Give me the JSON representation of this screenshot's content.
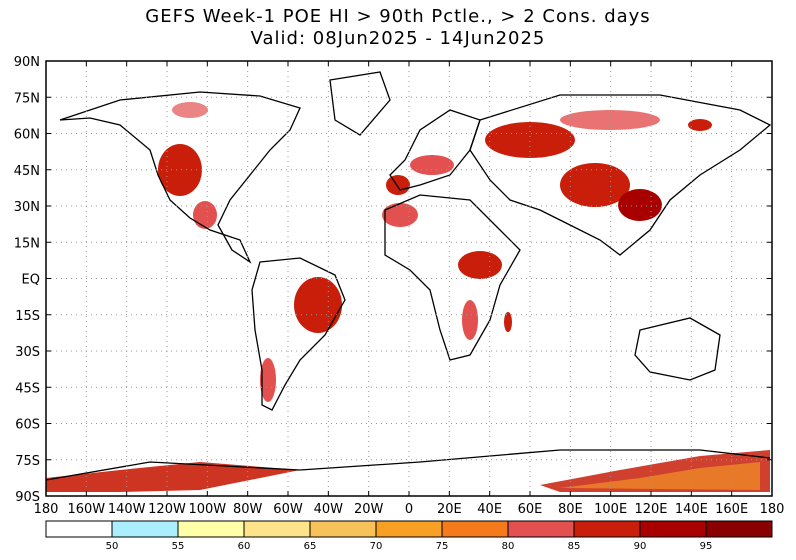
{
  "title": {
    "line1": "GEFS Week-1 POE HI > 90th Pctle., > 2 Cons. days",
    "line2": "Valid: 08Jun2025 - 14Jun2025"
  },
  "map": {
    "lat_labels": [
      "90N",
      "75N",
      "60N",
      "45N",
      "30N",
      "15N",
      "EQ",
      "15S",
      "30S",
      "45S",
      "60S",
      "75S",
      "90S"
    ],
    "lon_labels": [
      "180",
      "160W",
      "140W",
      "120W",
      "100W",
      "80W",
      "60W",
      "40W",
      "20W",
      "0",
      "20E",
      "40E",
      "60E",
      "80E",
      "100E",
      "120E",
      "140E",
      "160E",
      "180"
    ]
  },
  "colorbar": {
    "labels": [
      "50",
      "55",
      "60",
      "65",
      "70",
      "75",
      "80",
      "85",
      "90",
      "95"
    ],
    "colors": [
      "#ffffff",
      "#aaeeff",
      "#ffffaa",
      "#fde48a",
      "#f8c25a",
      "#f7a024",
      "#f57a1c",
      "#e35050",
      "#c81e0a",
      "#a80000",
      "#8a0000"
    ]
  },
  "colors": {
    "land_outline": "#000000",
    "grid": "#999999"
  }
}
